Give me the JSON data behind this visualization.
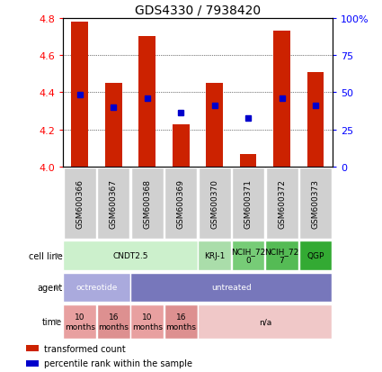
{
  "title": "GDS4330 / 7938420",
  "samples": [
    "GSM600366",
    "GSM600367",
    "GSM600368",
    "GSM600369",
    "GSM600370",
    "GSM600371",
    "GSM600372",
    "GSM600373"
  ],
  "bar_values": [
    4.78,
    4.45,
    4.7,
    4.23,
    4.45,
    4.07,
    4.73,
    4.51
  ],
  "bar_base": 4.0,
  "percentile_values": [
    4.39,
    4.32,
    4.37,
    4.29,
    4.33,
    4.26,
    4.37,
    4.33
  ],
  "ylim": [
    4.0,
    4.8
  ],
  "yticks_left": [
    4.0,
    4.2,
    4.4,
    4.6,
    4.8
  ],
  "yticks_right_labels": [
    "0",
    "25",
    "50",
    "75",
    "100%"
  ],
  "bar_color": "#cc2200",
  "percentile_color": "#0000cc",
  "cell_line_spans": [
    {
      "label": "CNDT2.5",
      "start": 0,
      "end": 4,
      "color": "#ccf0cc"
    },
    {
      "label": "KRJ-1",
      "start": 4,
      "end": 5,
      "color": "#aaddaa"
    },
    {
      "label": "NCIH_72\n0",
      "start": 5,
      "end": 6,
      "color": "#77cc77"
    },
    {
      "label": "NCIH_72\n7",
      "start": 6,
      "end": 7,
      "color": "#55bb55"
    },
    {
      "label": "QGP",
      "start": 7,
      "end": 8,
      "color": "#33aa33"
    }
  ],
  "agent_spans": [
    {
      "label": "octreotide",
      "start": 0,
      "end": 2,
      "color": "#aaaadd"
    },
    {
      "label": "untreated",
      "start": 2,
      "end": 8,
      "color": "#7777bb"
    }
  ],
  "time_spans": [
    {
      "label": "10\nmonths",
      "start": 0,
      "end": 1,
      "color": "#e8a0a0"
    },
    {
      "label": "16\nmonths",
      "start": 1,
      "end": 2,
      "color": "#dd9090"
    },
    {
      "label": "10\nmonths",
      "start": 2,
      "end": 3,
      "color": "#e8a0a0"
    },
    {
      "label": "16\nmonths",
      "start": 3,
      "end": 4,
      "color": "#dd9090"
    },
    {
      "label": "n/a",
      "start": 4,
      "end": 8,
      "color": "#f0c8c8"
    }
  ],
  "legend_items": [
    {
      "label": "transformed count",
      "color": "#cc2200"
    },
    {
      "label": "percentile rank within the sample",
      "color": "#0000cc"
    }
  ]
}
